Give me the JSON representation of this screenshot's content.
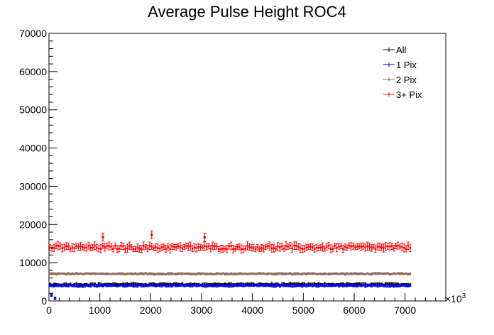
{
  "chart_data": {
    "type": "scatter",
    "title": "Average Pulse Height ROC4",
    "xlabel": "",
    "ylabel": "",
    "x_scale_label": "×10",
    "x_scale_exponent": "3",
    "xlim": [
      0,
      7800
    ],
    "ylim": [
      0,
      70000
    ],
    "x_ticks": [
      0,
      1000,
      2000,
      3000,
      4000,
      5000,
      6000,
      7000
    ],
    "x_tick_labels": [
      "0",
      "1000",
      "2000",
      "3000",
      "4000",
      "5000",
      "6000",
      "7000"
    ],
    "y_ticks": [
      0,
      10000,
      20000,
      30000,
      40000,
      50000,
      60000,
      70000
    ],
    "y_tick_labels": [
      "0",
      "10000",
      "20000",
      "30000",
      "40000",
      "50000",
      "60000",
      "70000"
    ],
    "x_range": [
      0,
      7100
    ],
    "legend_position": "top-right",
    "grid": false,
    "series": [
      {
        "name": "All",
        "color": "#000000",
        "level": 4300,
        "error": 300,
        "outliers": []
      },
      {
        "name": "1 Pix",
        "color": "#0000ff",
        "level": 4000,
        "error": 250,
        "outliers": [
          {
            "x": 50,
            "y": 1500
          },
          {
            "x": 120,
            "y": 700
          }
        ]
      },
      {
        "name": "2 Pix",
        "color": "#8b6355",
        "level": 7100,
        "error": 200,
        "outliers": []
      },
      {
        "name": "3+ Pix",
        "color": "#ff0000",
        "level": 14000,
        "error": 800,
        "outliers": [
          {
            "x": 1060,
            "y": 16700
          },
          {
            "x": 2020,
            "y": 17300
          },
          {
            "x": 3060,
            "y": 16600
          }
        ]
      }
    ]
  }
}
